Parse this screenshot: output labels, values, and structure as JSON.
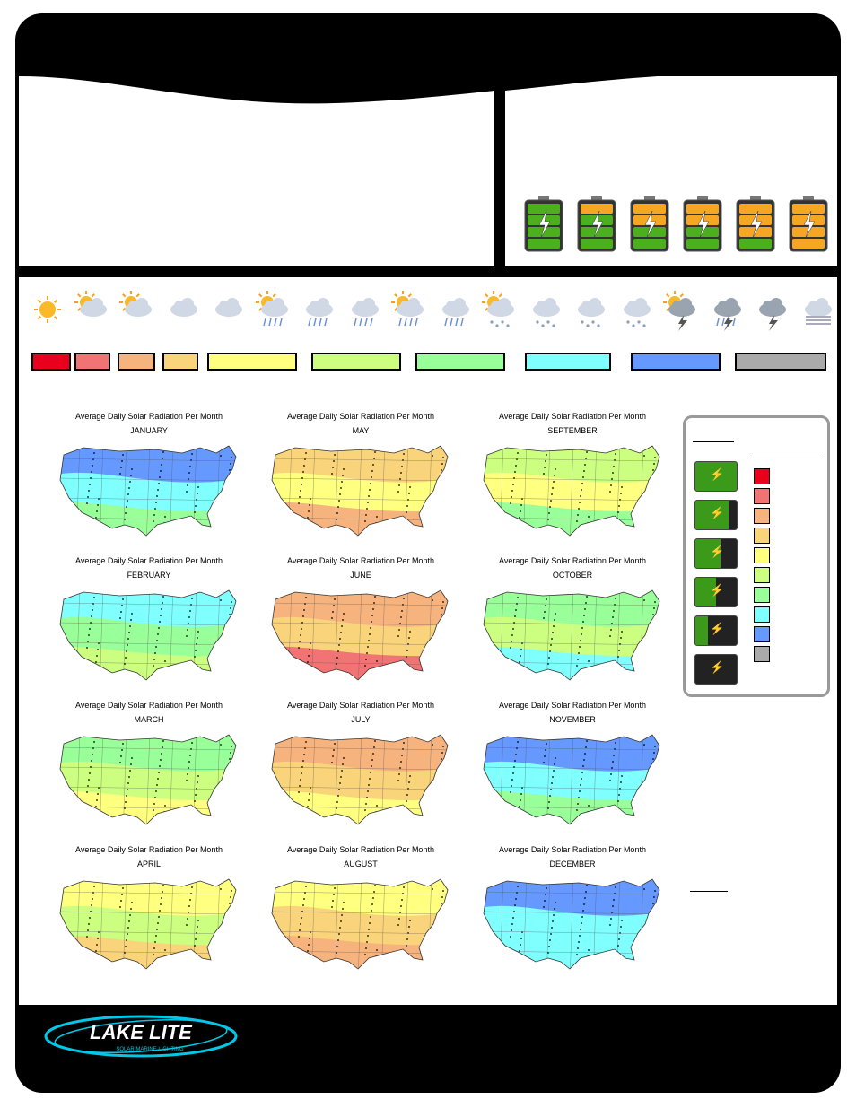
{
  "logo": {
    "main": "LAKE LITE",
    "tagline": "SOLAR MARINE LIGHTING"
  },
  "map_title": "Average Daily Solar Radiation Per Month",
  "months": [
    "JANUARY",
    "FEBRUARY",
    "MARCH",
    "APRIL",
    "MAY",
    "JUNE",
    "JULY",
    "AUGUST",
    "SEPTEMBER",
    "OCTOBER",
    "NOVEMBER",
    "DECEMBER"
  ],
  "batteries": [
    {
      "charge": 1.0,
      "green_bars": 4
    },
    {
      "charge": 0.8,
      "green_bars": 3
    },
    {
      "charge": 0.6,
      "green_bars": 2
    },
    {
      "charge": 0.5,
      "green_bars": 2
    },
    {
      "charge": 0.3,
      "green_bars": 1
    },
    {
      "charge": 0.0,
      "green_bars": 0
    }
  ],
  "weather_icons": [
    "sun-icon",
    "sun-cloud-icon",
    "partly-cloudy-icon",
    "cloud-icon",
    "overcast-icon",
    "sun-rain-icon",
    "rain-icon",
    "heavy-rain-icon",
    "sun-sleet-icon",
    "sleet-icon",
    "sun-snow-icon",
    "snow-icon",
    "snow-icon",
    "snow-icon",
    "thunderstorm-sun-icon",
    "thunderstorm-rain-icon",
    "lightning-icon",
    "fog-icon"
  ],
  "scale_colors": [
    "#e8001c",
    "#f27373",
    "#f7b37e",
    "#fad47a",
    "#ffff80",
    "#ccff80",
    "#99ff99",
    "#80ffff",
    "#6699ff",
    "#aaaaaa"
  ],
  "legend_colors": [
    "#e8001c",
    "#f27373",
    "#f7b37e",
    "#fad47a",
    "#ffff80",
    "#ccff80",
    "#99ff99",
    "#80ffff",
    "#6699ff",
    "#aaaaaa"
  ],
  "map_fills": {
    "JANUARY": [
      "#6699ff",
      "#80ffff",
      "#99ff99"
    ],
    "FEBRUARY": [
      "#80ffff",
      "#99ff99",
      "#ccff80"
    ],
    "MARCH": [
      "#99ff99",
      "#ccff80",
      "#ffff80"
    ],
    "APRIL": [
      "#ffff80",
      "#ccff80",
      "#fad47a"
    ],
    "MAY": [
      "#fad47a",
      "#ffff80",
      "#f7b37e"
    ],
    "JUNE": [
      "#f7b37e",
      "#fad47a",
      "#f27373"
    ],
    "JULY": [
      "#f7b37e",
      "#fad47a",
      "#ffff80"
    ],
    "AUGUST": [
      "#ffff80",
      "#fad47a",
      "#f7b37e"
    ],
    "SEPTEMBER": [
      "#ccff80",
      "#ffff80",
      "#99ff99"
    ],
    "OCTOBER": [
      "#99ff99",
      "#ccff80",
      "#80ffff"
    ],
    "NOVEMBER": [
      "#6699ff",
      "#80ffff",
      "#99ff99"
    ],
    "DECEMBER": [
      "#6699ff",
      "#80ffff",
      "#80ffff"
    ]
  }
}
